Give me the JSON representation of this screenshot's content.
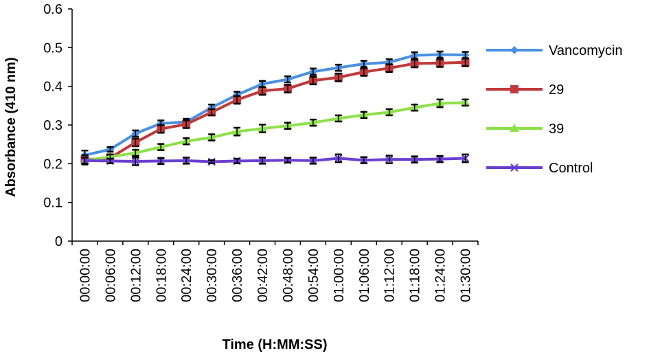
{
  "chart_data": {
    "type": "line",
    "title": "",
    "xlabel": "Time (H:MM:SS)",
    "ylabel": "Absorbance (410 nm)",
    "ylim": [
      0,
      0.6
    ],
    "yticks": [
      "0",
      "0.1",
      "0.2",
      "0.3",
      "0.4",
      "0.5",
      "0.6"
    ],
    "grid": false,
    "legend_position": "right",
    "error_bars": true,
    "categories": [
      "00:00:00",
      "00:06:00",
      "00:12:00",
      "00:18:00",
      "00:24:00",
      "00:30:00",
      "00:36:00",
      "00:42:00",
      "00:48:00",
      "00:54:00",
      "01:00:00",
      "01:06:00",
      "01:12:00",
      "01:18:00",
      "01:24:00",
      "01:30:00"
    ],
    "series": [
      {
        "name": "Vancomycin",
        "color": "#4a90e2",
        "marker": "diamond",
        "values": [
          0.222,
          0.237,
          0.278,
          0.304,
          0.308,
          0.345,
          0.378,
          0.406,
          0.418,
          0.438,
          0.448,
          0.458,
          0.462,
          0.48,
          0.482,
          0.481
        ],
        "errors": [
          0.012,
          0.006,
          0.008,
          0.008,
          0.008,
          0.008,
          0.008,
          0.008,
          0.008,
          0.008,
          0.008,
          0.008,
          0.008,
          0.008,
          0.008,
          0.008
        ]
      },
      {
        "name": "29",
        "color": "#c0393b",
        "marker": "square",
        "values": [
          0.21,
          0.215,
          0.255,
          0.29,
          0.302,
          0.333,
          0.365,
          0.388,
          0.394,
          0.415,
          0.423,
          0.437,
          0.447,
          0.459,
          0.46,
          0.462
        ],
        "errors": [
          0.012,
          0.006,
          0.01,
          0.01,
          0.01,
          0.008,
          0.01,
          0.01,
          0.01,
          0.01,
          0.01,
          0.01,
          0.01,
          0.01,
          0.01,
          0.01
        ]
      },
      {
        "name": "39",
        "color": "#8ee04a",
        "marker": "triangle",
        "values": [
          0.208,
          0.218,
          0.228,
          0.243,
          0.258,
          0.268,
          0.283,
          0.291,
          0.298,
          0.306,
          0.317,
          0.326,
          0.333,
          0.345,
          0.356,
          0.358
        ],
        "errors": [
          0.008,
          0.006,
          0.008,
          0.008,
          0.008,
          0.008,
          0.01,
          0.01,
          0.008,
          0.008,
          0.008,
          0.008,
          0.008,
          0.008,
          0.01,
          0.008
        ]
      },
      {
        "name": "Control",
        "color": "#6a3fd0",
        "marker": "x",
        "values": [
          0.208,
          0.207,
          0.206,
          0.207,
          0.208,
          0.205,
          0.207,
          0.208,
          0.209,
          0.208,
          0.214,
          0.209,
          0.211,
          0.211,
          0.212,
          0.214
        ],
        "errors": [
          0.008,
          0.006,
          0.01,
          0.008,
          0.008,
          0.004,
          0.006,
          0.008,
          0.006,
          0.008,
          0.01,
          0.008,
          0.01,
          0.008,
          0.008,
          0.01
        ]
      }
    ]
  }
}
